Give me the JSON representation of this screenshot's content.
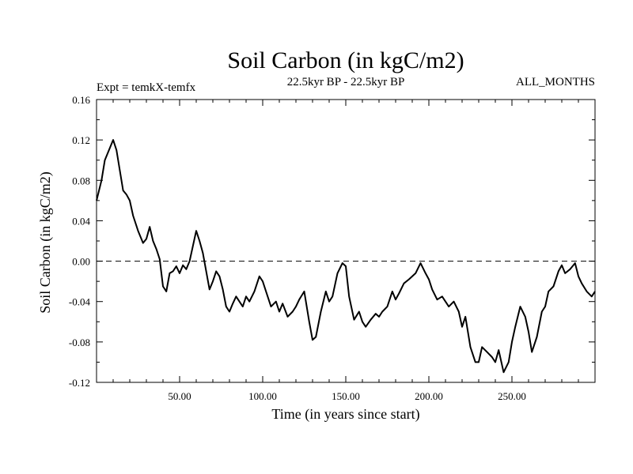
{
  "chart_data": {
    "type": "line",
    "title": "Soil Carbon (in kgC/m2)",
    "subtitle_left": "Expt = temkX-temfx",
    "subtitle_center": "22.5kyr BP - 22.5kyr BP",
    "subtitle_right": "ALL_MONTHS",
    "xlabel": "Time (in years since start)",
    "ylabel": "Soil Carbon (in kgC/m2)",
    "xlim": [
      0,
      300
    ],
    "ylim": [
      -0.12,
      0.16
    ],
    "xticks": [
      50,
      100,
      150,
      200,
      250
    ],
    "xtick_labels": [
      "50.00",
      "100.00",
      "150.00",
      "200.00",
      "250.00"
    ],
    "yticks": [
      -0.12,
      -0.08,
      -0.04,
      0.0,
      0.04,
      0.08,
      0.12,
      0.16
    ],
    "ytick_labels": [
      "-0.12",
      "-0.08",
      "-0.04",
      "0.00",
      "0.04",
      "0.08",
      "0.12",
      "0.16"
    ],
    "reference_line": 0.0,
    "series": [
      {
        "name": "Soil Carbon",
        "color": "#000000",
        "x": [
          0,
          3,
          5,
          8,
          10,
          12,
          14,
          16,
          18,
          20,
          22,
          25,
          28,
          30,
          32,
          34,
          36,
          38,
          40,
          42,
          44,
          46,
          48,
          50,
          52,
          54,
          56,
          58,
          60,
          62,
          64,
          66,
          68,
          70,
          72,
          74,
          76,
          78,
          80,
          82,
          84,
          86,
          88,
          90,
          92,
          95,
          98,
          100,
          102,
          105,
          108,
          110,
          112,
          115,
          118,
          120,
          122,
          125,
          128,
          130,
          132,
          135,
          138,
          140,
          142,
          145,
          148,
          150,
          152,
          155,
          158,
          160,
          162,
          165,
          168,
          170,
          172,
          175,
          178,
          180,
          182,
          185,
          188,
          190,
          192,
          195,
          198,
          200,
          202,
          205,
          208,
          210,
          212,
          215,
          218,
          220,
          222,
          225,
          228,
          230,
          232,
          235,
          238,
          240,
          242,
          245,
          248,
          250,
          252,
          255,
          258,
          260,
          262,
          265,
          268,
          270,
          272,
          275,
          278,
          280,
          282,
          285,
          288,
          290,
          292,
          295,
          298,
          300
        ],
        "values": [
          0.06,
          0.08,
          0.1,
          0.112,
          0.12,
          0.11,
          0.09,
          0.07,
          0.066,
          0.06,
          0.045,
          0.03,
          0.018,
          0.022,
          0.034,
          0.02,
          0.012,
          0.002,
          -0.025,
          -0.03,
          -0.012,
          -0.01,
          -0.005,
          -0.012,
          -0.004,
          -0.008,
          0.0,
          0.015,
          0.03,
          0.02,
          0.008,
          -0.01,
          -0.028,
          -0.02,
          -0.01,
          -0.015,
          -0.028,
          -0.045,
          -0.05,
          -0.042,
          -0.035,
          -0.04,
          -0.045,
          -0.035,
          -0.04,
          -0.03,
          -0.015,
          -0.02,
          -0.03,
          -0.045,
          -0.04,
          -0.05,
          -0.042,
          -0.055,
          -0.05,
          -0.045,
          -0.038,
          -0.03,
          -0.06,
          -0.078,
          -0.075,
          -0.05,
          -0.03,
          -0.04,
          -0.035,
          -0.012,
          -0.002,
          -0.005,
          -0.035,
          -0.058,
          -0.05,
          -0.06,
          -0.065,
          -0.058,
          -0.052,
          -0.055,
          -0.05,
          -0.045,
          -0.03,
          -0.038,
          -0.032,
          -0.022,
          -0.018,
          -0.015,
          -0.012,
          -0.002,
          -0.012,
          -0.018,
          -0.028,
          -0.038,
          -0.035,
          -0.04,
          -0.045,
          -0.04,
          -0.05,
          -0.065,
          -0.055,
          -0.085,
          -0.1,
          -0.1,
          -0.085,
          -0.09,
          -0.095,
          -0.1,
          -0.088,
          -0.11,
          -0.1,
          -0.08,
          -0.065,
          -0.045,
          -0.055,
          -0.07,
          -0.09,
          -0.075,
          -0.05,
          -0.045,
          -0.03,
          -0.025,
          -0.01,
          -0.004,
          -0.012,
          -0.008,
          -0.002,
          -0.015,
          -0.022,
          -0.03,
          -0.035,
          -0.03
        ]
      }
    ]
  }
}
